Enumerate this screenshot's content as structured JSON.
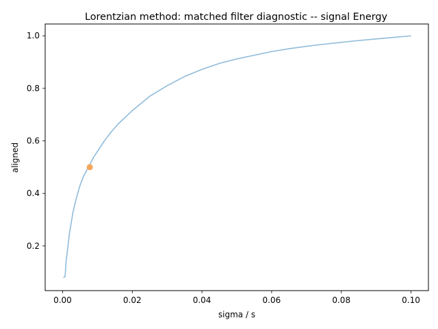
{
  "chart_data": {
    "type": "line",
    "title": "Lorentzian method:  matched filter diagnostic -- signal Energy",
    "xlabel": "sigma / s",
    "ylabel": "aligned",
    "xlim": [
      -0.005,
      0.105
    ],
    "ylim": [
      0.03,
      1.045
    ],
    "xticks": [
      0.0,
      0.02,
      0.04,
      0.06,
      0.08,
      0.1
    ],
    "xtick_labels": [
      "0.00",
      "0.02",
      "0.04",
      "0.06",
      "0.08",
      "0.10"
    ],
    "yticks": [
      0.2,
      0.4,
      0.6,
      0.8,
      1.0
    ],
    "ytick_labels": [
      "0.2",
      "0.4",
      "0.6",
      "0.8",
      "1.0"
    ],
    "grid": false,
    "series": [
      {
        "type": "line",
        "color": "#8fbbd9",
        "x": [
          0.0002,
          0.0007,
          0.001,
          0.0015,
          0.002,
          0.003,
          0.004,
          0.005,
          0.006,
          0.007,
          0.008,
          0.009,
          0.01,
          0.012,
          0.014,
          0.016,
          0.018,
          0.02,
          0.025,
          0.03,
          0.035,
          0.04,
          0.045,
          0.05,
          0.055,
          0.06,
          0.065,
          0.07,
          0.075,
          0.08,
          0.085,
          0.09,
          0.095,
          0.1
        ],
        "y": [
          0.08,
          0.083,
          0.14,
          0.195,
          0.25,
          0.33,
          0.385,
          0.43,
          0.465,
          0.49,
          0.515,
          0.54,
          0.56,
          0.6,
          0.635,
          0.665,
          0.69,
          0.715,
          0.77,
          0.81,
          0.845,
          0.872,
          0.895,
          0.912,
          0.926,
          0.94,
          0.951,
          0.96,
          0.968,
          0.975,
          0.982,
          0.988,
          0.994,
          1.0
        ]
      },
      {
        "type": "scatter",
        "color": "#f5a55a",
        "x": [
          0.0078
        ],
        "y": [
          0.5
        ]
      }
    ]
  }
}
